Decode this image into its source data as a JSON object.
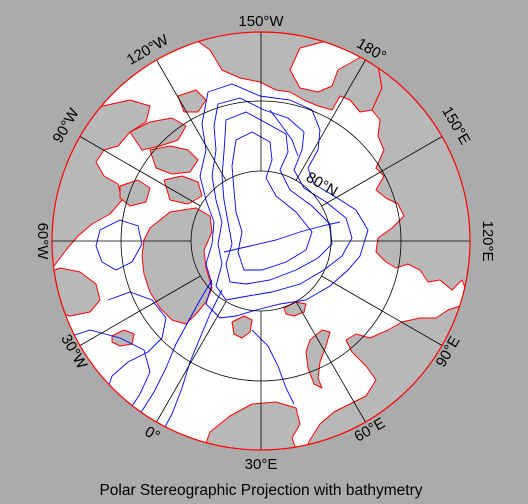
{
  "figure": {
    "caption": "Polar Stereographic Projection with bathymetry"
  },
  "colors": {
    "figure_background": "#ababab",
    "ocean": "#ffffff",
    "land": "#b8b8b8",
    "coastline": "#ff0000",
    "bathymetry": "#0000ff",
    "graticule": "#000000",
    "frame": "#ff0000"
  },
  "map": {
    "projection": "polar stereographic",
    "pole": "North Pole",
    "latitude_labels": [
      {
        "text": "80°N"
      }
    ],
    "longitude_labels": [
      {
        "text": "150°W"
      },
      {
        "text": "180°"
      },
      {
        "text": "150°E"
      },
      {
        "text": "120°E"
      },
      {
        "text": "90°E"
      },
      {
        "text": "60°E"
      },
      {
        "text": "30°E"
      },
      {
        "text": "0°"
      },
      {
        "text": "30°W"
      },
      {
        "text": "60°W"
      },
      {
        "text": "90°W"
      },
      {
        "text": "120°W"
      }
    ]
  }
}
